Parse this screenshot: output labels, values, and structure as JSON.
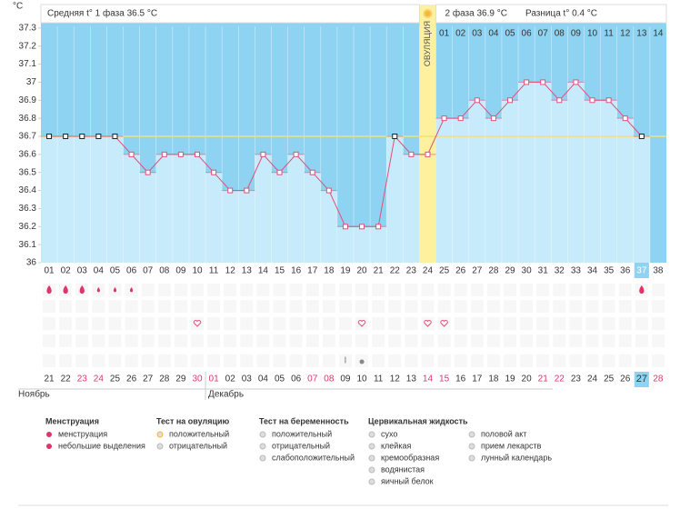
{
  "header": {
    "unit": "°C",
    "phase1": "Средняя t° 1 фаза 36.5 °C",
    "phase2": "2 фаза 36.9 °C",
    "diff": "Разница t° 0.4 °C",
    "ovulation": "ОВУЛЯЦИЯ"
  },
  "chart_data": {
    "type": "line",
    "categories": [
      "01",
      "02",
      "03",
      "04",
      "05",
      "06",
      "07",
      "08",
      "09",
      "10",
      "11",
      "12",
      "13",
      "14",
      "15",
      "16",
      "17",
      "18",
      "19",
      "20",
      "21",
      "22",
      "23",
      "24",
      "25",
      "26",
      "27",
      "28",
      "29",
      "30",
      "31",
      "32",
      "33",
      "34",
      "35",
      "36",
      "37",
      "38"
    ],
    "values": [
      36.7,
      36.7,
      36.7,
      36.7,
      36.7,
      36.6,
      36.5,
      36.6,
      36.6,
      36.6,
      36.5,
      36.4,
      36.4,
      36.6,
      36.5,
      36.6,
      36.5,
      36.4,
      36.2,
      36.2,
      36.2,
      36.7,
      36.6,
      36.6,
      36.8,
      36.8,
      36.9,
      36.8,
      36.9,
      37,
      37,
      36.9,
      37,
      36.9,
      36.9,
      36.8,
      36.7,
      null
    ],
    "phase2_days": [
      "01",
      "02",
      "03",
      "04",
      "05",
      "06",
      "07",
      "08",
      "09",
      "10",
      "11",
      "12",
      "13",
      "14"
    ],
    "ylim": [
      36,
      37.4
    ],
    "yticks": [
      36,
      36.1,
      36.2,
      36.3,
      36.4,
      36.5,
      36.6,
      36.7,
      36.8,
      36.9,
      37,
      37.1,
      37.2,
      37.3
    ],
    "cover_line": 36.7,
    "ovulation_day": "24",
    "current_day": "37",
    "color": "#e0507a",
    "dates": [
      "21",
      "22",
      "23",
      "24",
      "25",
      "26",
      "27",
      "28",
      "29",
      "30",
      "01",
      "02",
      "03",
      "04",
      "05",
      "06",
      "07",
      "08",
      "09",
      "10",
      "11",
      "12",
      "13",
      "14",
      "15",
      "16",
      "17",
      "18",
      "19",
      "20",
      "21",
      "22",
      "23",
      "24",
      "25",
      "26",
      "27",
      "28"
    ],
    "months": [
      "Ноябрь",
      "Декабрь"
    ]
  },
  "legend": [
    {
      "title": "Менструация",
      "items": [
        "менструация",
        "небольшие выделения"
      ]
    },
    {
      "title": "Тест на овуляцию",
      "items": [
        "положительный",
        "отрицательный"
      ]
    },
    {
      "title": "Тест на беременность",
      "items": [
        "положительный",
        "отрицательный",
        "слабоположительный"
      ]
    },
    {
      "title": "Цервикальная жидкость",
      "items": [
        "сухо",
        "клейкая",
        "кремообразная",
        "водянистая",
        "яичный белок"
      ]
    },
    {
      "items": [
        "половой акт",
        "прием лекарств",
        "лунный календарь"
      ]
    }
  ]
}
